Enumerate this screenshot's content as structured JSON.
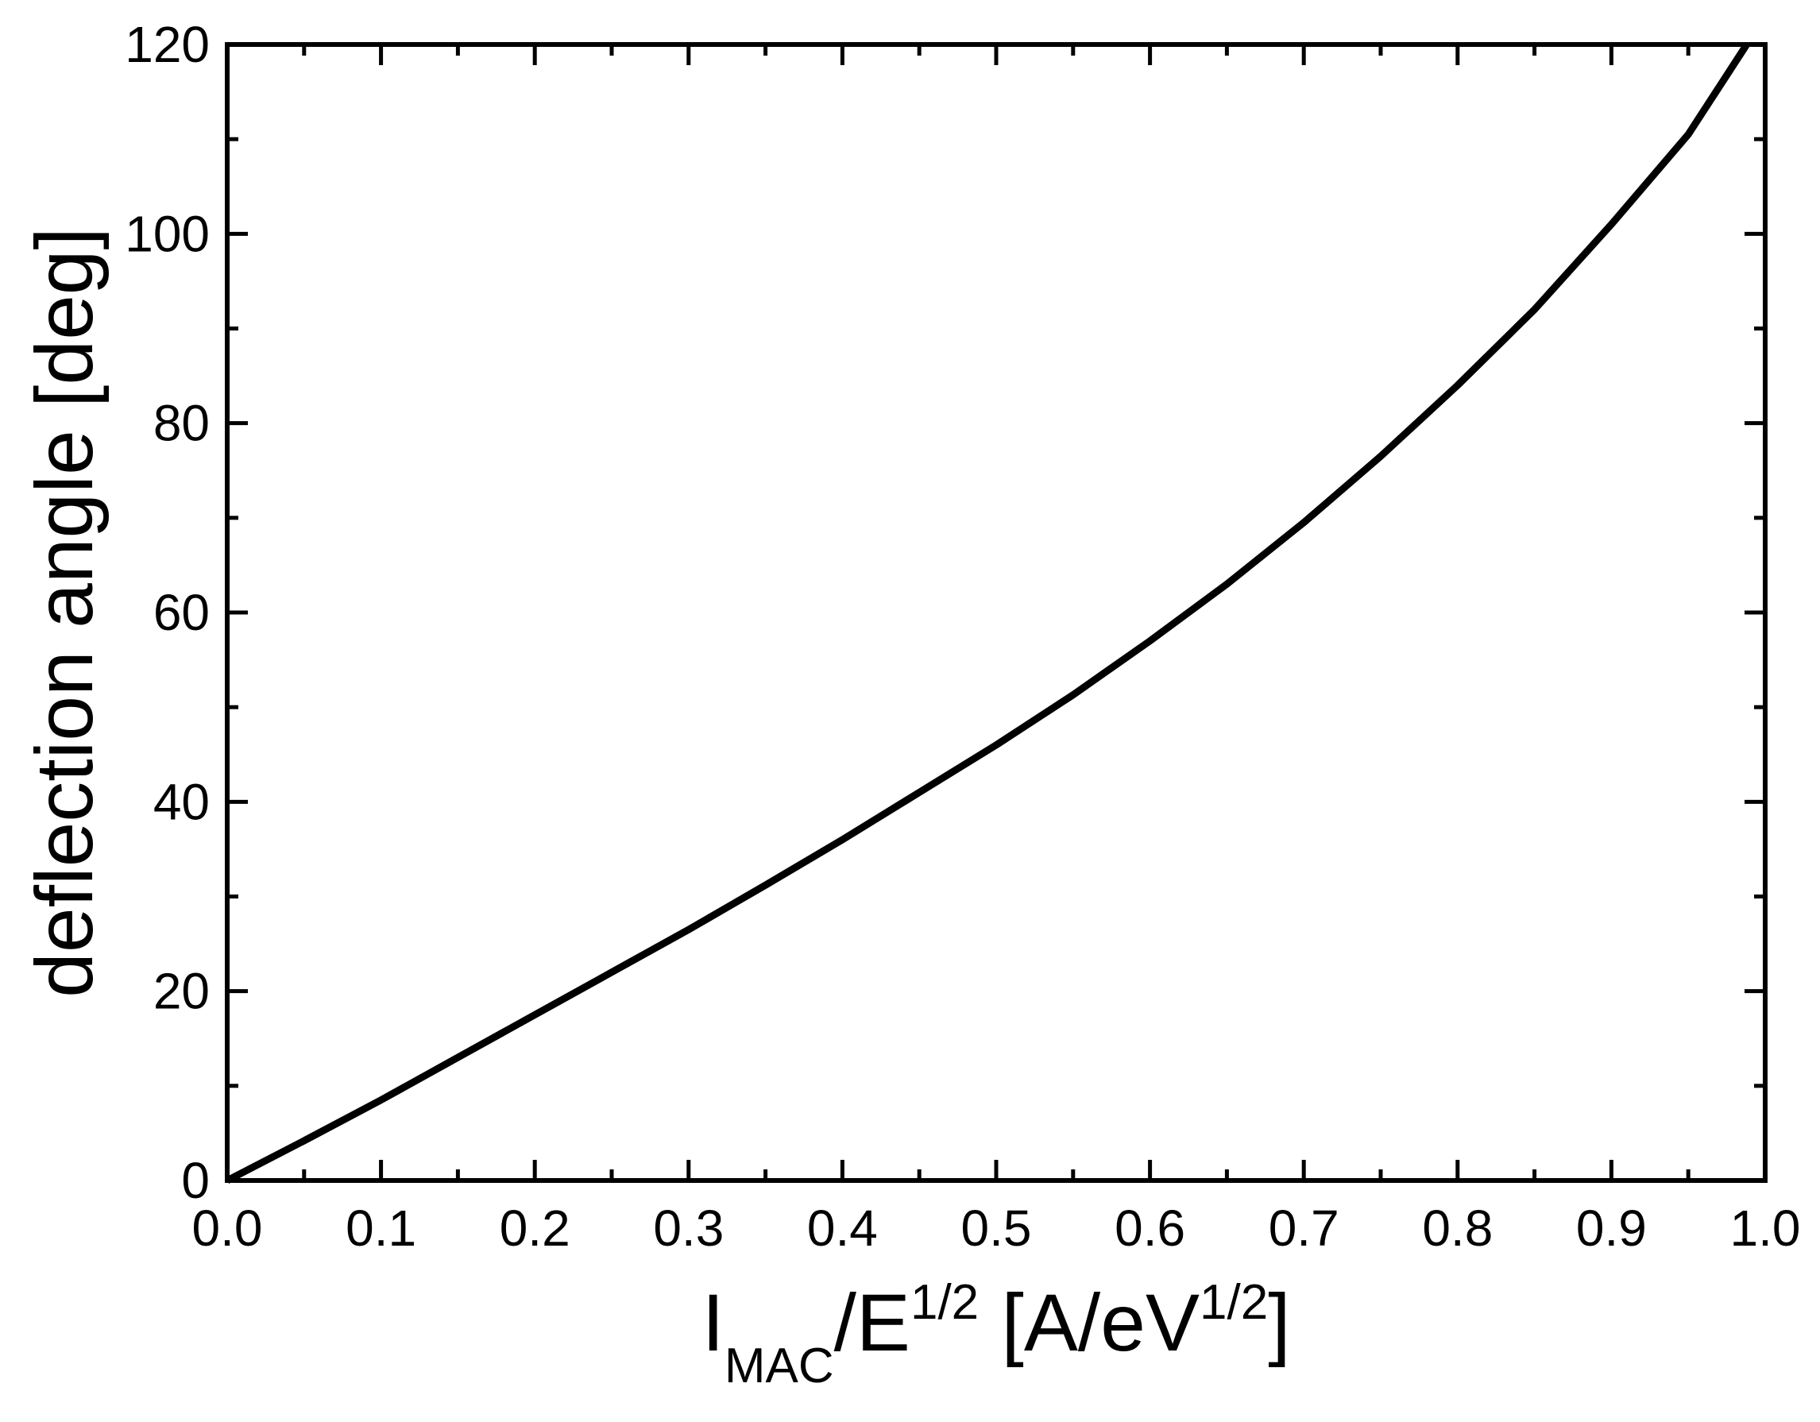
{
  "chart_data": {
    "type": "line",
    "xlabel": [
      "I",
      "MAC",
      "/E",
      "1/2",
      " [A/eV",
      "1/2",
      "]"
    ],
    "ylabel": "deflection angle [deg]",
    "x": [
      0,
      0.05,
      0.1,
      0.15,
      0.2,
      0.25,
      0.3,
      0.35,
      0.4,
      0.45,
      0.5,
      0.55,
      0.6,
      0.65,
      0.7,
      0.75,
      0.8,
      0.85,
      0.9,
      0.95,
      0.988
    ],
    "series": [
      {
        "name": "deflection angle",
        "color": "#000000",
        "values": [
          0,
          4.2,
          8.5,
          13,
          17.5,
          22,
          26.5,
          31.2,
          36,
          41,
          46,
          51.3,
          57,
          63,
          69.5,
          76.5,
          84,
          92,
          101,
          110.5,
          120
        ]
      }
    ],
    "xlim": [
      0,
      1
    ],
    "ylim": [
      0,
      120
    ],
    "xticks": [
      {
        "value": 0,
        "label": "0.0"
      },
      {
        "value": 0.1,
        "label": "0.1"
      },
      {
        "value": 0.2,
        "label": "0.2"
      },
      {
        "value": 0.3,
        "label": "0.3"
      },
      {
        "value": 0.4,
        "label": "0.4"
      },
      {
        "value": 0.5,
        "label": "0.5"
      },
      {
        "value": 0.6,
        "label": "0.6"
      },
      {
        "value": 0.7,
        "label": "0.7"
      },
      {
        "value": 0.8,
        "label": "0.8"
      },
      {
        "value": 0.9,
        "label": "0.9"
      },
      {
        "value": 1,
        "label": "1.0"
      }
    ],
    "yticks": [
      0,
      20,
      40,
      60,
      80,
      100,
      120
    ],
    "xminorticks": [
      0.05,
      0.15,
      0.25,
      0.35,
      0.45,
      0.55,
      0.65,
      0.75,
      0.85,
      0.95
    ],
    "yminorticks": [
      10,
      30,
      50,
      70,
      90,
      110
    ]
  }
}
